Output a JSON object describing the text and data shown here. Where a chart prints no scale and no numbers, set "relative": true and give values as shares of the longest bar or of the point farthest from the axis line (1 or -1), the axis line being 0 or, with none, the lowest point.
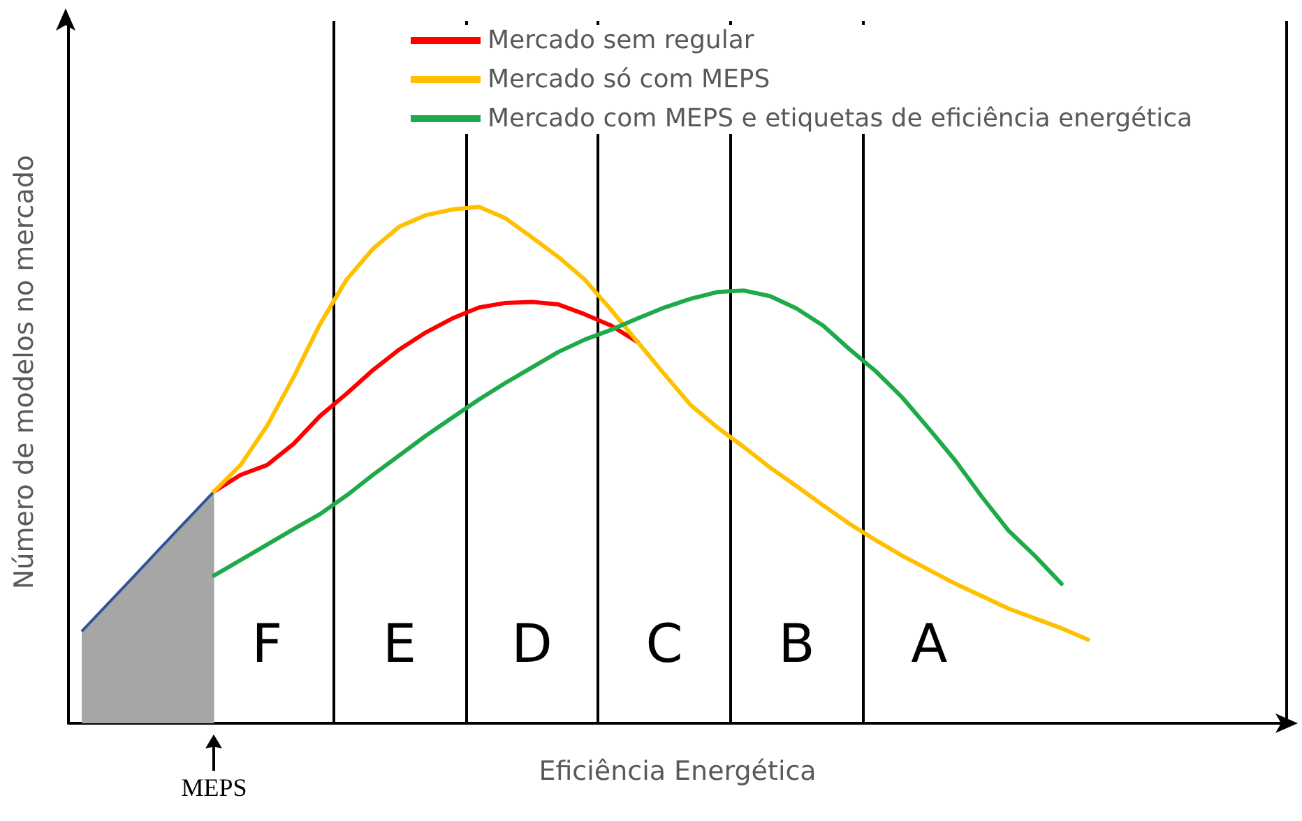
{
  "chart_data": {
    "type": "line",
    "relative": true,
    "xlabel": "Eficiência Energética",
    "ylabel": "Número de modelos no mercado",
    "grid": "x",
    "legend": "top",
    "marker": "none",
    "categories": [
      null,
      null,
      null,
      null,
      null,
      null,
      null,
      "F",
      null,
      null,
      null,
      null,
      "E",
      null,
      null,
      null,
      null,
      "D",
      null,
      null,
      null,
      null,
      "C",
      null,
      null,
      null,
      null,
      "B",
      null,
      null,
      null,
      null,
      "A",
      null,
      null,
      null,
      null,
      null,
      null,
      null,
      null,
      null,
      null,
      null,
      null,
      null
    ],
    "series": [
      {
        "type": "area",
        "color": "#a6a6a6",
        "values": [
          0.178,
          0.232,
          0.286,
          0.341,
          0.395,
          0.449,
          null,
          null,
          null,
          null,
          null,
          null,
          null,
          null,
          null,
          null,
          null,
          null,
          null,
          null,
          null,
          null,
          null,
          null,
          null,
          null,
          null,
          null,
          null,
          null,
          null,
          null,
          null,
          null,
          null,
          null,
          null,
          null,
          null,
          null,
          null,
          null,
          null,
          null,
          null,
          null
        ]
      },
      {
        "name": "Mercado sem regular",
        "color": "#ff0000",
        "values": [
          null,
          null,
          null,
          null,
          null,
          0.449,
          0.481,
          0.5,
          0.541,
          0.595,
          0.638,
          0.684,
          0.724,
          0.757,
          0.784,
          0.805,
          0.814,
          0.816,
          0.811,
          0.792,
          0.77,
          0.738,
          null,
          null,
          null,
          null,
          null,
          null,
          null,
          null,
          null,
          null,
          null,
          null,
          null,
          null,
          null,
          null,
          null,
          null,
          null,
          null,
          null,
          null,
          null,
          null
        ]
      },
      {
        "name": "Mercado só com MEPS",
        "color": "#ffc000",
        "values": [
          null,
          null,
          null,
          null,
          null,
          0.449,
          0.5,
          0.576,
          0.67,
          0.773,
          0.859,
          0.919,
          0.962,
          0.984,
          0.995,
          1,
          0.978,
          0.941,
          0.903,
          0.859,
          0.8,
          0.738,
          0.676,
          0.616,
          0.573,
          0.535,
          0.495,
          0.459,
          0.422,
          0.386,
          0.354,
          0.324,
          0.297,
          0.27,
          0.246,
          0.222,
          0.203,
          0.184,
          0.162,
          null,
          null,
          null,
          null,
          null,
          null,
          null
        ]
      },
      {
        "name": "Mercado com MEPS e etiquetas de eficiência energética",
        "color": "#1faa4a",
        "values": [
          null,
          null,
          null,
          null,
          null,
          0.286,
          0.316,
          0.346,
          0.376,
          0.405,
          0.441,
          0.481,
          0.519,
          0.557,
          0.592,
          0.627,
          0.659,
          0.689,
          0.719,
          0.743,
          0.762,
          0.784,
          0.805,
          0.822,
          0.835,
          0.838,
          0.827,
          0.803,
          0.77,
          0.724,
          0.681,
          0.63,
          0.57,
          0.508,
          0.438,
          0.373,
          0.324,
          0.27,
          null,
          null,
          null,
          null,
          null,
          null,
          null,
          null
        ]
      }
    ],
    "annotations": [
      "MEPS"
    ]
  }
}
